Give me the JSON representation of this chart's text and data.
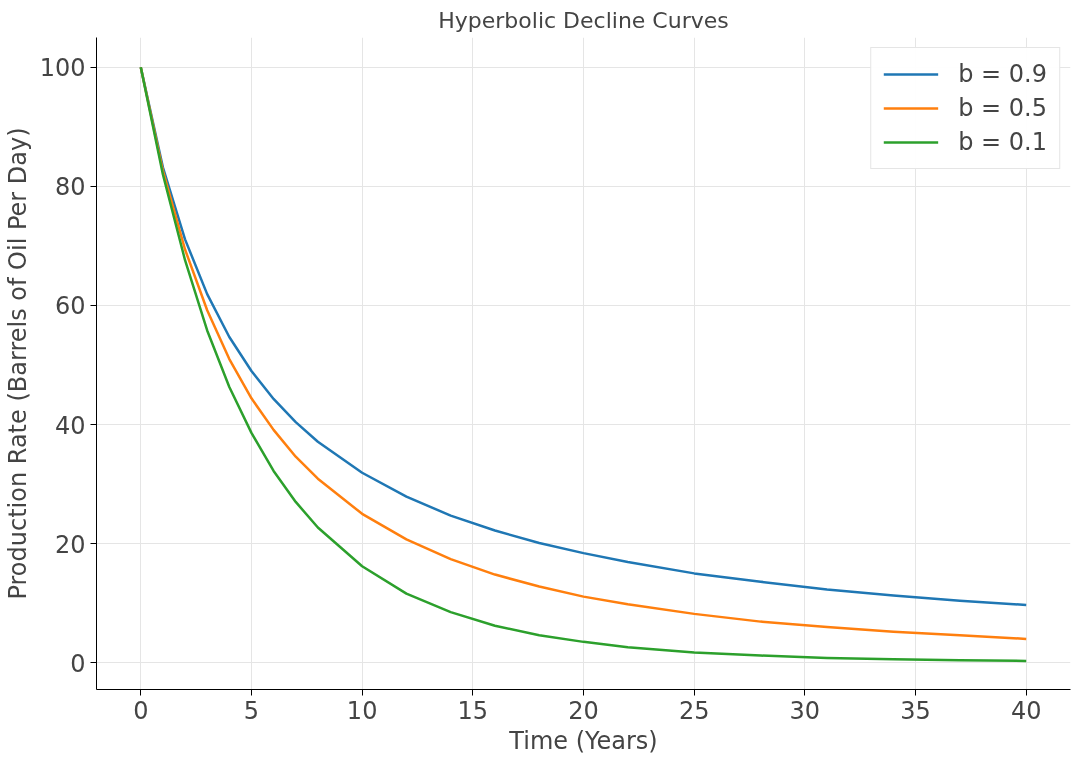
{
  "chart_data": {
    "type": "line",
    "title": "Hyperbolic Decline Curves",
    "xlabel": "Time (Years)",
    "ylabel": "Production Rate (Barrels of Oil Per Day)",
    "x": [
      0,
      1,
      2,
      3,
      4,
      5,
      6,
      7,
      8,
      10,
      12,
      14,
      16,
      18,
      20,
      22,
      25,
      28,
      31,
      34,
      37,
      40
    ],
    "series": [
      {
        "name": "b = 0.9",
        "color": "#1f77b4",
        "values": [
          100,
          83.2,
          71.1,
          61.9,
          54.7,
          49.0,
          44.3,
          40.4,
          37.1,
          31.9,
          27.9,
          24.7,
          22.2,
          20.1,
          18.4,
          16.9,
          15.0,
          13.6,
          12.3,
          11.3,
          10.4,
          9.7
        ]
      },
      {
        "name": "b = 0.5",
        "color": "#ff7f0e",
        "values": [
          100,
          82.6,
          69.4,
          59.2,
          51.0,
          44.4,
          39.1,
          34.6,
          30.9,
          25.0,
          20.7,
          17.4,
          14.8,
          12.8,
          11.1,
          9.8,
          8.2,
          6.9,
          6.0,
          5.2,
          4.6,
          4.0
        ]
      },
      {
        "name": "b = 0.1",
        "color": "#2ca02c",
        "values": [
          100,
          82.0,
          67.6,
          55.8,
          46.3,
          38.6,
          32.2,
          27.0,
          22.7,
          16.2,
          11.6,
          8.5,
          6.2,
          4.6,
          3.5,
          2.6,
          1.7,
          1.2,
          0.8,
          0.6,
          0.4,
          0.3
        ]
      }
    ],
    "xlim": [
      -2,
      42
    ],
    "ylim": [
      -4.5,
      105
    ],
    "xticks": [
      0,
      5,
      10,
      15,
      20,
      25,
      30,
      35,
      40
    ],
    "yticks": [
      0,
      20,
      40,
      60,
      80,
      100
    ],
    "grid": true,
    "legend": "top right",
    "marker": "none",
    "line_style": "solid"
  }
}
